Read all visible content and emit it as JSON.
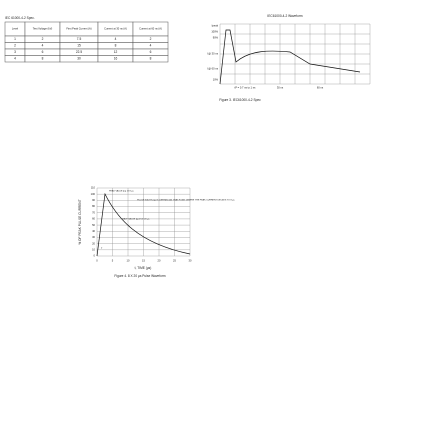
{
  "table_caption": "IEC 61000-4-2 Spec.",
  "table": {
    "header": [
      "Level",
      "Test Voltage (kV)",
      "First Peak Current (A)",
      "Current at 30 ns (A)",
      "Current at 60 ns (A)"
    ],
    "rows": [
      [
        "1",
        "2",
        "7.5",
        "4",
        "2"
      ],
      [
        "2",
        "4",
        "15",
        "8",
        "4"
      ],
      [
        "3",
        "6",
        "22.5",
        "12",
        "6"
      ],
      [
        "4",
        "8",
        "30",
        "16",
        "8"
      ]
    ]
  },
  "figure3": {
    "title": "IEC61000-4-2 Waveform",
    "labels": [
      "Ipeak",
      "100%",
      "90%",
      "I @ 30 ns",
      "I @ 60 ns",
      "10%"
    ],
    "x_labels": [
      "tP = 0.7 ns to 1 ns",
      "30 ns",
      "60 ns"
    ],
    "caption": "Figure 3. IEC61000-4-2 Spec"
  },
  "figure4": {
    "y_axis_label": "% OF PEAK PULSE CURRENT",
    "y_ticks": [
      "0",
      "10",
      "20",
      "30",
      "40",
      "50",
      "60",
      "70",
      "80",
      "90",
      "100",
      "110"
    ],
    "x_ticks": [
      "0",
      "5",
      "10",
      "15",
      "20",
      "25",
      "30"
    ],
    "x_axis_label": "t, TIME (µs)",
    "annotations": [
      "PEAK VALUE Ipp @ 8 µs",
      "PULSE WIDTH (tp) IS DEFINED AS THAT POINT WHERE THE PEAK CURRENT DECAYS TO 8 µs",
      "HALF VALUE Ipp/2 @ 20 µs",
      "tr"
    ],
    "caption": "Figure 4. 8 X 20 µs Pulse Waveform"
  }
}
